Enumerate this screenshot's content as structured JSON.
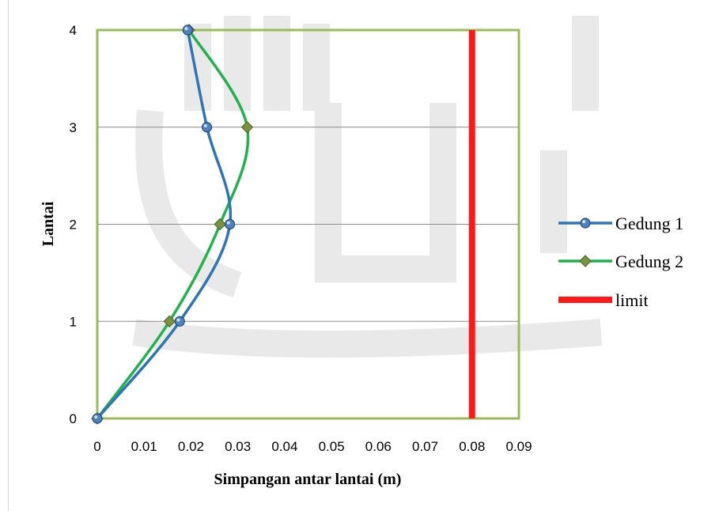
{
  "chart_data": {
    "type": "line",
    "xlabel": "Simpangan antar lantai (m)",
    "ylabel": "Lantai",
    "xlim": [
      0,
      0.09
    ],
    "ylim": [
      0,
      4
    ],
    "x_ticks": [
      "0",
      "0.01",
      "0.02",
      "0.03",
      "0.04",
      "0.05",
      "0.06",
      "0.07",
      "0.08",
      "0.09"
    ],
    "y_ticks": [
      "0",
      "1",
      "2",
      "3",
      "4"
    ],
    "grid": "horizontal",
    "legend_position": "right",
    "series": [
      {
        "name": "Gedung 1",
        "color": "#2e75b6",
        "marker": "circle",
        "points": [
          [
            0,
            0
          ],
          [
            0.0176,
            1
          ],
          [
            0.0283,
            2
          ],
          [
            0.0234,
            3
          ],
          [
            0.0193,
            4
          ]
        ]
      },
      {
        "name": "Gedung 2",
        "color": "#21b24b",
        "marker": "diamond",
        "points": [
          [
            0,
            0
          ],
          [
            0.0154,
            1
          ],
          [
            0.0262,
            2
          ],
          [
            0.032,
            3
          ],
          [
            0.0196,
            4
          ]
        ]
      },
      {
        "name": "limit",
        "color": "#ff1a1a",
        "marker": "none",
        "points": [
          [
            0.08,
            0
          ],
          [
            0.08,
            4
          ]
        ]
      }
    ]
  }
}
